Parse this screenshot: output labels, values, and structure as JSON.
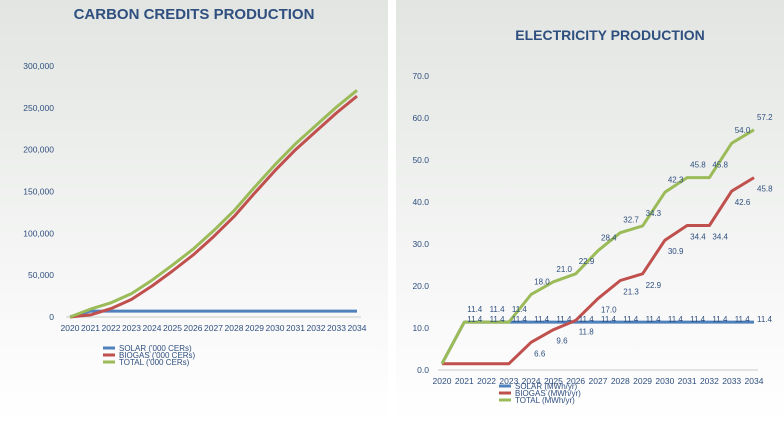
{
  "chart_data": [
    {
      "type": "line",
      "title": "CARBON CREDITS PRODUCTION",
      "x": [
        "2020",
        "2021",
        "2022",
        "2023",
        "2024",
        "2025",
        "2026",
        "2027",
        "2028",
        "2029",
        "2030",
        "2031",
        "2032",
        "2033",
        "2034"
      ],
      "ylim": [
        0,
        300000
      ],
      "yticks": [
        "0",
        "50,000",
        "100,000",
        "150,000",
        "200,000",
        "250,000",
        "300,000"
      ],
      "grid": false,
      "legend": "bottom",
      "series": [
        {
          "name": "SOLAR ('000 CERs)",
          "color": "#4f81bd",
          "values": [
            0,
            7000,
            7000,
            7000,
            7000,
            7000,
            7000,
            7000,
            7000,
            7000,
            7000,
            7000,
            7000,
            7000,
            7000
          ]
        },
        {
          "name": "BIOGAS ('000 CERs)",
          "color": "#c0504d",
          "values": [
            0,
            2500,
            10000,
            21000,
            37000,
            55000,
            74000,
            96000,
            120000,
            148000,
            175000,
            200000,
            222000,
            244000,
            264000
          ]
        },
        {
          "name": "TOTAL ('000 CERs)",
          "color": "#9bbb59",
          "values": [
            0,
            9500,
            17000,
            28000,
            44000,
            62000,
            81000,
            103000,
            127000,
            155000,
            182000,
            207000,
            229000,
            251000,
            271000
          ]
        }
      ]
    },
    {
      "type": "line",
      "title": "ELECTRICITY PRODUCTION",
      "x": [
        "2020",
        "2021",
        "2022",
        "2023",
        "2024",
        "2025",
        "2026",
        "2027",
        "2028",
        "2029",
        "2030",
        "2031",
        "2032",
        "2033",
        "2034"
      ],
      "ylim": [
        0,
        70
      ],
      "yticks": [
        "0.0",
        "10.0",
        "20.0",
        "30.0",
        "40.0",
        "50.0",
        "60.0",
        "70.0"
      ],
      "grid": false,
      "legend": "bottom",
      "series": [
        {
          "name": "SOLAR (MWh/yr)",
          "color": "#4f81bd",
          "values": [
            1.5,
            11.4,
            11.4,
            11.4,
            11.4,
            11.4,
            11.4,
            11.4,
            11.4,
            11.4,
            11.4,
            11.4,
            11.4,
            11.4,
            11.4
          ],
          "labels": [
            "",
            "11.4",
            "11.4",
            "11.4",
            "11.4",
            "11.4",
            "11.4",
            "11.4",
            "11.4",
            "11.4",
            "11.4",
            "11.4",
            "11.4",
            "11.4",
            "11.4"
          ]
        },
        {
          "name": "BIOGAS (MWh/yr)",
          "color": "#c0504d",
          "values": [
            1.5,
            1.5,
            1.5,
            1.5,
            6.6,
            9.6,
            11.8,
            17.0,
            21.3,
            22.9,
            30.9,
            34.4,
            34.4,
            42.6,
            45.8
          ],
          "labels": [
            "",
            "",
            "",
            "",
            "6.6",
            "9.6",
            "11.8",
            "17.0",
            "21.3",
            "22.9",
            "30.9",
            "34.4",
            "34.4",
            "42.6",
            "45.8"
          ]
        },
        {
          "name": "TOTAL (MWh/yr)",
          "color": "#9bbb59",
          "values": [
            1.5,
            11.4,
            11.4,
            11.4,
            18.0,
            21.0,
            22.9,
            28.4,
            32.7,
            34.3,
            42.3,
            45.8,
            45.8,
            54.0,
            57.2
          ],
          "labels": [
            "",
            "11.4",
            "11.4",
            "11.4",
            "18.0",
            "21.0",
            "22.9",
            "28.4",
            "32.7",
            "34.3",
            "42.3",
            "45.8",
            "45.8",
            "54.0",
            "57.2"
          ]
        }
      ]
    }
  ]
}
